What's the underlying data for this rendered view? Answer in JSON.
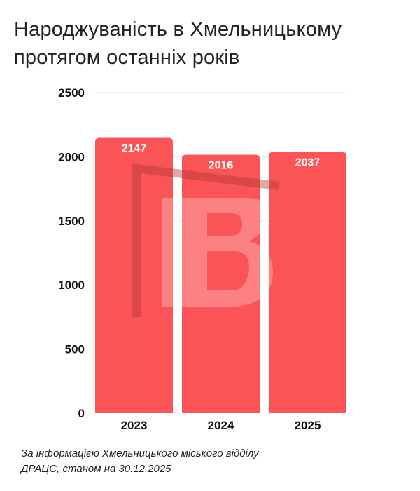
{
  "title_lines": [
    "Народжуваність в Хмельницькому",
    "протягом останніх років"
  ],
  "source_lines": [
    "За інформацією Хмельницького міського відділу",
    "ДРАЦС, станом на 30.12.2025"
  ],
  "colors": {
    "bar": "#fa5456",
    "grid": "#e6e6e6",
    "watermark_fill": "#ffffff",
    "watermark_line": "#b23234"
  },
  "chart_data": {
    "type": "bar",
    "categories": [
      "2023",
      "2024",
      "2025"
    ],
    "values": [
      2147,
      2016,
      2037
    ],
    "data_labels": [
      "2147",
      "2016",
      "2037"
    ],
    "ylim": [
      0,
      2500
    ],
    "yticks": [
      0,
      500,
      1000,
      1500,
      2000,
      2500
    ],
    "ytick_labels": [
      "0",
      "500",
      "1000",
      "1500",
      "2000",
      "2500"
    ],
    "grid": true,
    "title": "Народжуваність в Хмельницькому протягом останніх років",
    "xlabel": "",
    "ylabel": ""
  }
}
